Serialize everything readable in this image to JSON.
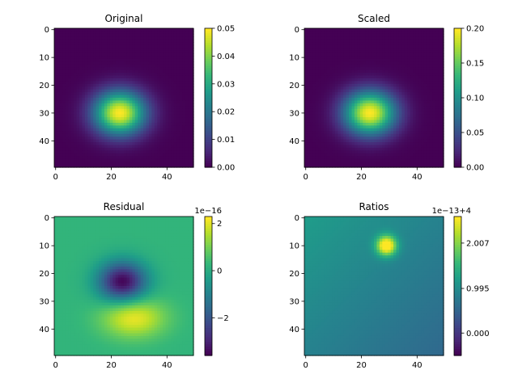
{
  "colors": {
    "colormap": "viridis",
    "viridis_stops": [
      "#440154",
      "#482878",
      "#3e4989",
      "#31688e",
      "#26828e",
      "#1f9e89",
      "#35b779",
      "#6ece58",
      "#b5de2b",
      "#fde725"
    ],
    "axis_color": "#000000",
    "background": "#ffffff"
  },
  "chart_data": [
    {
      "type": "heatmap",
      "title": "Original",
      "grid_size": [
        50,
        50
      ],
      "x_range": [
        0,
        49
      ],
      "y_range": [
        0,
        49
      ],
      "x_ticks": [
        0,
        20,
        40
      ],
      "y_ticks": [
        0,
        10,
        20,
        30,
        40
      ],
      "y_inverted": true,
      "colorbar": {
        "range": [
          0.0,
          0.05
        ],
        "ticks": [
          "0.00",
          "0.01",
          "0.02",
          "0.03",
          "0.04",
          "0.05"
        ],
        "offset_text": ""
      },
      "features": [
        {
          "kind": "gaussian_peak",
          "center_x": 23,
          "center_y": 30,
          "sigma_x": 6.5,
          "sigma_y": 5.5,
          "amplitude": 0.05
        }
      ]
    },
    {
      "type": "heatmap",
      "title": "Scaled",
      "grid_size": [
        50,
        50
      ],
      "x_range": [
        0,
        49
      ],
      "y_range": [
        0,
        49
      ],
      "x_ticks": [
        0,
        20,
        40
      ],
      "y_ticks": [
        0,
        10,
        20,
        30,
        40
      ],
      "y_inverted": true,
      "colorbar": {
        "range": [
          0.0,
          0.2
        ],
        "ticks": [
          "0.00",
          "0.05",
          "0.10",
          "0.15",
          "0.20"
        ],
        "offset_text": ""
      },
      "features": [
        {
          "kind": "gaussian_peak",
          "center_x": 23,
          "center_y": 30,
          "sigma_x": 6.5,
          "sigma_y": 5.5,
          "amplitude": 0.2
        }
      ]
    },
    {
      "type": "heatmap",
      "title": "Residual",
      "grid_size": [
        50,
        50
      ],
      "x_range": [
        0,
        49
      ],
      "y_range": [
        0,
        49
      ],
      "x_ticks": [
        0,
        20,
        40
      ],
      "y_ticks": [
        0,
        10,
        20,
        30,
        40
      ],
      "y_inverted": true,
      "colorbar": {
        "range": [
          -3.6,
          2.3
        ],
        "ticks": [
          "2",
          "0",
          "−2"
        ],
        "tick_values": [
          2,
          0,
          -2
        ],
        "offset_text": "1e−16"
      },
      "features": [
        {
          "kind": "baseline",
          "value": 0.25
        },
        {
          "kind": "gaussian_trough",
          "center_x": 24,
          "center_y": 23,
          "sigma_x": 6,
          "sigma_y": 5,
          "amplitude": -3.8
        },
        {
          "kind": "gaussian_peak",
          "center_x": 28,
          "center_y": 36,
          "sigma_x": 8,
          "sigma_y": 5,
          "amplitude": 1.9
        }
      ]
    },
    {
      "type": "heatmap",
      "title": "Ratios",
      "grid_size": [
        50,
        50
      ],
      "x_range": [
        0,
        49
      ],
      "y_range": [
        0,
        49
      ],
      "x_ticks": [
        0,
        20,
        40
      ],
      "y_ticks": [
        0,
        10,
        20,
        30,
        40
      ],
      "y_inverted": true,
      "colorbar": {
        "range": [
          -0.5,
          2.6
        ],
        "ticks": [
          "2.007",
          "0.995",
          "0.000"
        ],
        "tick_values": [
          2.007,
          0.995,
          0.0
        ],
        "offset_text": "1e−13+4"
      },
      "features": [
        {
          "kind": "baseline",
          "value": 0.55
        },
        {
          "kind": "gradient",
          "value_top_left": 0.65,
          "value_bottom_right": 0.0
        },
        {
          "kind": "gaussian_peak",
          "center_x": 29,
          "center_y": 10,
          "sigma_x": 2.5,
          "sigma_y": 2.5,
          "amplitude": 2.1
        }
      ]
    }
  ]
}
